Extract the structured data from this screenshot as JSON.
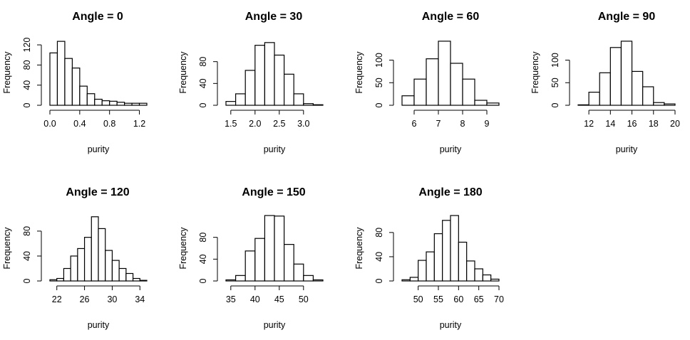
{
  "chart_data": [
    {
      "type": "bar",
      "title": "Angle = 0",
      "xlabel": "purity",
      "ylabel": "Frequency",
      "bin_edges": [
        0.0,
        0.1,
        0.2,
        0.3,
        0.4,
        0.5,
        0.6,
        0.7,
        0.8,
        0.9,
        1.0,
        1.1,
        1.2,
        1.3
      ],
      "values": [
        104,
        127,
        93,
        74,
        38,
        23,
        12,
        9,
        8,
        6,
        4,
        4,
        4
      ],
      "xticks": [
        {
          "v": 0.0,
          "label": "0.0"
        },
        {
          "v": 0.4,
          "label": "0.4"
        },
        {
          "v": 0.8,
          "label": "0.8"
        },
        {
          "v": 1.2,
          "label": "1.2"
        }
      ],
      "yticks": [
        {
          "v": 0,
          "label": "0"
        },
        {
          "v": 40,
          "label": "40"
        },
        {
          "v": 80,
          "label": "80"
        },
        {
          "v": 120,
          "label": "120"
        }
      ],
      "xlim": [
        0.0,
        1.3
      ],
      "ylim": [
        0,
        130
      ]
    },
    {
      "type": "bar",
      "title": "Angle = 30",
      "xlabel": "purity",
      "ylabel": "Frequency",
      "bin_edges": [
        1.4,
        1.6,
        1.8,
        2.0,
        2.2,
        2.4,
        2.6,
        2.8,
        3.0,
        3.2,
        3.4
      ],
      "values": [
        7,
        21,
        64,
        110,
        115,
        92,
        57,
        21,
        3,
        1
      ],
      "xticks": [
        {
          "v": 1.5,
          "label": "1.5"
        },
        {
          "v": 2.0,
          "label": "2.0"
        },
        {
          "v": 2.5,
          "label": "2.5"
        },
        {
          "v": 3.0,
          "label": "3.0"
        }
      ],
      "yticks": [
        {
          "v": 0,
          "label": "0"
        },
        {
          "v": 40,
          "label": "40"
        },
        {
          "v": 80,
          "label": "80"
        }
      ],
      "xlim": [
        1.4,
        3.4
      ],
      "ylim": [
        0,
        120
      ]
    },
    {
      "type": "bar",
      "title": "Angle = 60",
      "xlabel": "purity",
      "ylabel": "Frequency",
      "bin_edges": [
        5.5,
        6.0,
        6.5,
        7.0,
        7.5,
        8.0,
        8.5,
        9.0,
        9.5
      ],
      "values": [
        21,
        58,
        103,
        142,
        93,
        58,
        11,
        5
      ],
      "xticks": [
        {
          "v": 6,
          "label": "6"
        },
        {
          "v": 7,
          "label": "7"
        },
        {
          "v": 8,
          "label": "8"
        },
        {
          "v": 9,
          "label": "9"
        }
      ],
      "yticks": [
        {
          "v": 0,
          "label": "0"
        },
        {
          "v": 50,
          "label": "50"
        },
        {
          "v": 100,
          "label": "100"
        }
      ],
      "xlim": [
        5.5,
        9.5
      ],
      "ylim": [
        0,
        145
      ]
    },
    {
      "type": "bar",
      "title": "Angle = 90",
      "xlabel": "purity",
      "ylabel": "Frequency",
      "bin_edges": [
        11,
        12,
        13,
        14,
        15,
        16,
        17,
        18,
        19,
        20
      ],
      "values": [
        1,
        29,
        72,
        128,
        142,
        75,
        41,
        6,
        3
      ],
      "xticks": [
        {
          "v": 12,
          "label": "12"
        },
        {
          "v": 14,
          "label": "14"
        },
        {
          "v": 16,
          "label": "16"
        },
        {
          "v": 18,
          "label": "18"
        },
        {
          "v": 20,
          "label": "20"
        }
      ],
      "yticks": [
        {
          "v": 0,
          "label": "0"
        },
        {
          "v": 50,
          "label": "50"
        },
        {
          "v": 100,
          "label": "100"
        }
      ],
      "xlim": [
        11,
        20
      ],
      "ylim": [
        0,
        145
      ]
    },
    {
      "type": "bar",
      "title": "Angle = 120",
      "xlabel": "purity",
      "ylabel": "Frequency",
      "bin_edges": [
        21,
        22,
        23,
        24,
        25,
        26,
        27,
        28,
        29,
        30,
        31,
        32,
        33,
        34,
        35
      ],
      "values": [
        2,
        4,
        20,
        40,
        52,
        70,
        103,
        84,
        49,
        33,
        20,
        12,
        4,
        1
      ],
      "xticks": [
        {
          "v": 22,
          "label": "22"
        },
        {
          "v": 26,
          "label": "26"
        },
        {
          "v": 30,
          "label": "30"
        },
        {
          "v": 34,
          "label": "34"
        }
      ],
      "yticks": [
        {
          "v": 0,
          "label": "0"
        },
        {
          "v": 40,
          "label": "40"
        },
        {
          "v": 80,
          "label": "80"
        }
      ],
      "xlim": [
        21,
        35
      ],
      "ylim": [
        0,
        105
      ]
    },
    {
      "type": "bar",
      "title": "Angle = 150",
      "xlabel": "purity",
      "ylabel": "Frequency",
      "bin_edges": [
        34,
        36,
        38,
        40,
        42,
        44,
        46,
        48,
        50,
        52,
        54
      ],
      "values": [
        2,
        10,
        55,
        78,
        120,
        119,
        67,
        31,
        10,
        2
      ],
      "xticks": [
        {
          "v": 35,
          "label": "35"
        },
        {
          "v": 40,
          "label": "40"
        },
        {
          "v": 45,
          "label": "45"
        },
        {
          "v": 50,
          "label": "50"
        }
      ],
      "yticks": [
        {
          "v": 0,
          "label": "0"
        },
        {
          "v": 40,
          "label": "40"
        },
        {
          "v": 80,
          "label": "80"
        }
      ],
      "xlim": [
        34,
        54
      ],
      "ylim": [
        0,
        120
      ]
    },
    {
      "type": "bar",
      "title": "Angle = 180",
      "xlabel": "purity",
      "ylabel": "Frequency",
      "bin_edges": [
        46,
        48,
        50,
        52,
        54,
        56,
        58,
        60,
        62,
        64,
        66,
        68,
        70
      ],
      "values": [
        2,
        6,
        34,
        48,
        78,
        100,
        108,
        64,
        33,
        20,
        10,
        3
      ],
      "xticks": [
        {
          "v": 50,
          "label": "50"
        },
        {
          "v": 55,
          "label": "55"
        },
        {
          "v": 60,
          "label": "60"
        },
        {
          "v": 65,
          "label": "65"
        },
        {
          "v": 70,
          "label": "70"
        }
      ],
      "yticks": [
        {
          "v": 0,
          "label": "0"
        },
        {
          "v": 40,
          "label": "40"
        },
        {
          "v": 80,
          "label": "80"
        }
      ],
      "xlim": [
        46,
        70
      ],
      "ylim": [
        0,
        108
      ]
    }
  ]
}
